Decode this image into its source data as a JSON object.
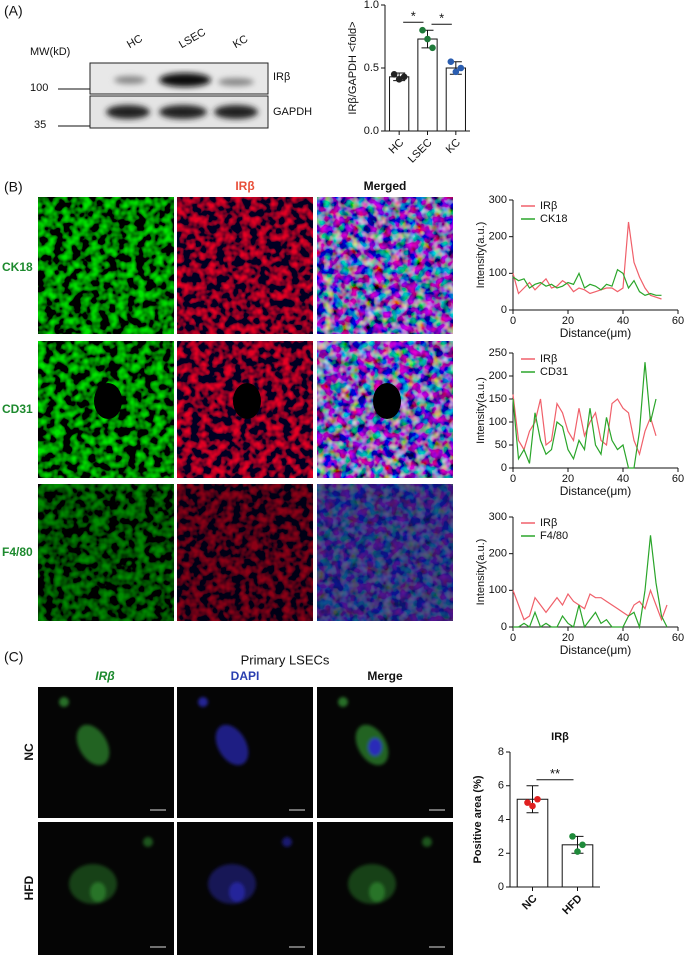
{
  "panels": {
    "a": "(A)",
    "b": "(B)",
    "c": "(C)"
  },
  "blot": {
    "mw_label": "MW(kD)",
    "lanes": [
      "HC",
      "LSEC",
      "KC"
    ],
    "markers": [
      100,
      35
    ],
    "bands": [
      "IRβ",
      "GAPDH"
    ]
  },
  "micrographs_b": {
    "columns": [
      "IRβ",
      "Merged"
    ],
    "rows": [
      "CK18",
      "CD31",
      "F4/80"
    ]
  },
  "micrographs_c": {
    "title": "Primary LSECs",
    "columns": [
      "IRβ",
      "DAPI",
      "Merge"
    ],
    "rows": [
      "NC",
      "HFD"
    ]
  },
  "chart_data": [
    {
      "type": "bar",
      "ylabel": "IRβ/GAPDH <fold>",
      "categories": [
        "HC",
        "LSEC",
        "KC"
      ],
      "values": [
        0.43,
        0.73,
        0.5
      ],
      "errors": [
        0.03,
        0.07,
        0.05
      ],
      "points": [
        [
          0.45,
          0.41,
          0.43
        ],
        [
          0.8,
          0.73,
          0.66
        ],
        [
          0.55,
          0.47,
          0.5
        ]
      ],
      "point_colors": [
        "#222222",
        "#1f7a3a",
        "#2a5db0"
      ],
      "ylim": [
        0,
        1
      ],
      "yticks": [
        {
          "value": 0,
          "label": "0.0"
        },
        {
          "value": 0.5,
          "label": "0.5"
        },
        {
          "value": 1,
          "label": "1.0"
        }
      ],
      "significance": [
        {
          "from": "HC",
          "to": "LSEC",
          "label": "*"
        },
        {
          "from": "LSEC",
          "to": "KC",
          "label": "*"
        }
      ]
    },
    {
      "type": "line",
      "xlabel": "Distance(μm)",
      "ylabel": "Intensity(a.u.)",
      "x": [
        0,
        2,
        4,
        6,
        8,
        10,
        12,
        14,
        16,
        18,
        20,
        22,
        24,
        26,
        28,
        30,
        32,
        34,
        36,
        38,
        40,
        42,
        44,
        46,
        48,
        50,
        52,
        54
      ],
      "series": [
        {
          "name": "IRβ",
          "color": "#f0606a",
          "values": [
            100,
            45,
            60,
            75,
            55,
            70,
            85,
            60,
            65,
            80,
            70,
            50,
            60,
            55,
            45,
            50,
            55,
            60,
            60,
            50,
            60,
            240,
            130,
            90,
            60,
            40,
            35,
            30
          ]
        },
        {
          "name": "CK18",
          "color": "#2aa52a",
          "values": [
            90,
            80,
            85,
            60,
            70,
            75,
            65,
            70,
            60,
            65,
            75,
            70,
            100,
            60,
            70,
            65,
            55,
            70,
            65,
            110,
            100,
            60,
            80,
            50,
            40,
            45,
            40,
            40
          ]
        }
      ],
      "xlim": [
        0,
        60
      ],
      "xticks": [
        0,
        20,
        40,
        60
      ],
      "ylim": [
        0,
        300
      ],
      "yticks": [
        0,
        100,
        200,
        300
      ]
    },
    {
      "type": "line",
      "xlabel": "Distance(μm)",
      "ylabel": "Intensity(a.u.)",
      "x": [
        0,
        2,
        4,
        6,
        8,
        10,
        12,
        14,
        16,
        18,
        20,
        22,
        24,
        26,
        28,
        30,
        32,
        34,
        36,
        38,
        40,
        42,
        44,
        46,
        48,
        50,
        52
      ],
      "series": [
        {
          "name": "IRβ",
          "color": "#f0606a",
          "values": [
            160,
            60,
            40,
            80,
            100,
            150,
            50,
            60,
            140,
            120,
            80,
            60,
            130,
            70,
            100,
            120,
            60,
            50,
            140,
            150,
            130,
            120,
            60,
            30,
            80,
            110,
            70
          ]
        },
        {
          "name": "CD31",
          "color": "#2aa52a",
          "values": [
            150,
            20,
            40,
            10,
            120,
            60,
            30,
            40,
            100,
            90,
            40,
            20,
            60,
            40,
            130,
            50,
            30,
            110,
            60,
            40,
            50,
            0,
            0,
            80,
            230,
            100,
            150
          ]
        }
      ],
      "xlim": [
        0,
        60
      ],
      "xticks": [
        0,
        20,
        40,
        60
      ],
      "ylim": [
        0,
        250
      ],
      "yticks": [
        0,
        50,
        100,
        150,
        200,
        250
      ]
    },
    {
      "type": "line",
      "xlabel": "Distance(μm)",
      "ylabel": "Intensity(a.u.)",
      "x": [
        0,
        2,
        4,
        6,
        8,
        10,
        12,
        14,
        16,
        18,
        20,
        22,
        24,
        26,
        28,
        30,
        32,
        34,
        36,
        38,
        40,
        42,
        44,
        46,
        48,
        50,
        52,
        54,
        56
      ],
      "series": [
        {
          "name": "IRβ",
          "color": "#f0606a",
          "values": [
            100,
            60,
            20,
            30,
            80,
            60,
            40,
            60,
            80,
            60,
            90,
            70,
            60,
            50,
            90,
            80,
            80,
            70,
            60,
            50,
            40,
            30,
            60,
            70,
            50,
            100,
            60,
            20,
            60
          ]
        },
        {
          "name": "F4/80",
          "color": "#2aa52a",
          "values": [
            0,
            0,
            10,
            0,
            40,
            0,
            10,
            0,
            0,
            30,
            10,
            0,
            60,
            0,
            20,
            40,
            10,
            20,
            0,
            0,
            0,
            30,
            40,
            0,
            100,
            250,
            120,
            30,
            0
          ]
        }
      ],
      "xlim": [
        0,
        60
      ],
      "xticks": [
        0,
        20,
        40,
        60
      ],
      "ylim": [
        0,
        300
      ],
      "yticks": [
        0,
        100,
        200,
        300
      ]
    },
    {
      "type": "bar",
      "title": "IRβ",
      "ylabel": "Positive area (%)",
      "categories": [
        "NC",
        "HFD"
      ],
      "values": [
        5.2,
        2.5
      ],
      "errors": [
        0.8,
        0.5
      ],
      "points": [
        [
          5.0,
          4.8,
          5.2
        ],
        [
          3.0,
          2.1,
          2.5
        ]
      ],
      "point_colors": [
        "#e02020",
        "#1f8a3a"
      ],
      "ylim": [
        0,
        8
      ],
      "yticks": [
        0,
        2,
        4,
        6,
        8
      ],
      "significance": [
        {
          "from": "NC",
          "to": "HFD",
          "label": "**"
        }
      ]
    }
  ]
}
